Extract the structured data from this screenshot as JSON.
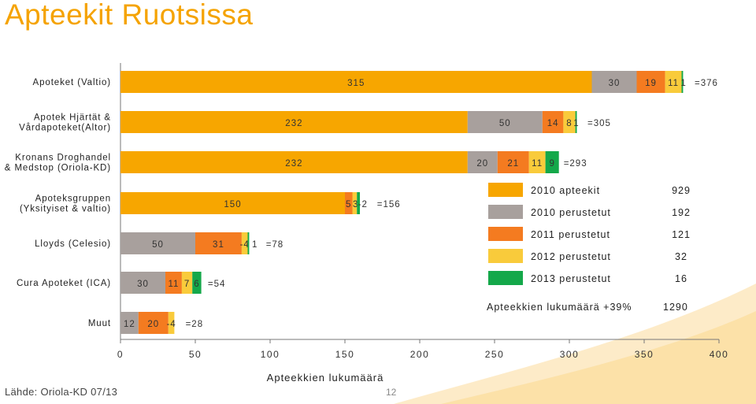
{
  "title": "Apteekit Ruotsissa",
  "colors": {
    "title": "#F5A300",
    "s2010_apteekit": "#F7A600",
    "s2010_perustetut": "#A8A09D",
    "s2011_perustetut": "#F47B20",
    "s2012_perustetut": "#F9CB3B",
    "s2013_perustetut": "#14A84A"
  },
  "chart_data": {
    "type": "bar",
    "orientation": "horizontal",
    "stacked": true,
    "categories": [
      "Apoteket (Valtio)",
      "Apotek Hjärtät & Vårdapoteket(Altor)",
      "Kronans Droghandel & Medstop (Oriola-KD)",
      "Apoteksgruppen (Yksityiset & valtio)",
      "Lloyds (Celesio)",
      "Cura Apoteket (ICA)",
      "Muut"
    ],
    "category_lines": [
      [
        "Apoteket (Valtio)"
      ],
      [
        "Apotek Hjärtät &",
        "Vårdapoteket(Altor)"
      ],
      [
        "Kronans Droghandel",
        "& Medstop (Oriola-KD)"
      ],
      [
        "Apoteksgruppen",
        "(Yksityiset & valtio)"
      ],
      [
        "Lloyds (Celesio)"
      ],
      [
        "Cura Apoteket (ICA)"
      ],
      [
        "Muut"
      ]
    ],
    "series": [
      {
        "name": "2010 apteekit",
        "values": [
          315,
          232,
          232,
          150,
          0,
          0,
          0
        ],
        "labels": [
          "315",
          "232",
          "232",
          "150",
          "",
          "",
          ""
        ]
      },
      {
        "name": "2010 perustetut",
        "values": [
          30,
          50,
          20,
          0,
          50,
          30,
          12
        ],
        "labels": [
          "30",
          "50",
          "20",
          "",
          "50",
          "30",
          "12"
        ]
      },
      {
        "name": "2011 perustetut",
        "values": [
          19,
          14,
          21,
          5,
          31,
          11,
          20
        ],
        "labels": [
          "19",
          "14",
          "21",
          "5",
          "31",
          "11",
          "20"
        ]
      },
      {
        "name": "2012 perustetut",
        "values": [
          11,
          8,
          11,
          3,
          -4,
          7,
          -4
        ],
        "labels": [
          "11",
          "8",
          "11",
          "3",
          "-4",
          "7",
          "-4"
        ]
      },
      {
        "name": "2013 perustetut",
        "values": [
          1,
          1,
          9,
          -2,
          1,
          6,
          0
        ],
        "labels": [
          "1",
          "1",
          "9",
          "-2",
          "1",
          "6",
          ""
        ]
      }
    ],
    "totals": [
      "=376",
      "=305",
      "=293",
      "=156",
      "=78",
      "=54",
      "=28"
    ],
    "xlim": [
      0,
      400
    ],
    "xticks": [
      "0",
      "50",
      "100",
      "150",
      "200",
      "250",
      "300",
      "350",
      "400"
    ],
    "xlabel": "Apteekkien lukumäärä",
    "legend_position": "right"
  },
  "legend": {
    "items": [
      {
        "label": "2010 apteekit",
        "count": "929"
      },
      {
        "label": "2010 perustetut",
        "count": "192"
      },
      {
        "label": "2011 perustetut",
        "count": "121"
      },
      {
        "label": "2012 perustetut",
        "count": "32"
      },
      {
        "label": "2013 perustetut",
        "count": "16"
      }
    ],
    "growth_label": "Apteekkien lukumäärä +39%",
    "growth_total": "1290"
  },
  "source": "Lähde: Oriola-KD 07/13",
  "page_number": "12"
}
